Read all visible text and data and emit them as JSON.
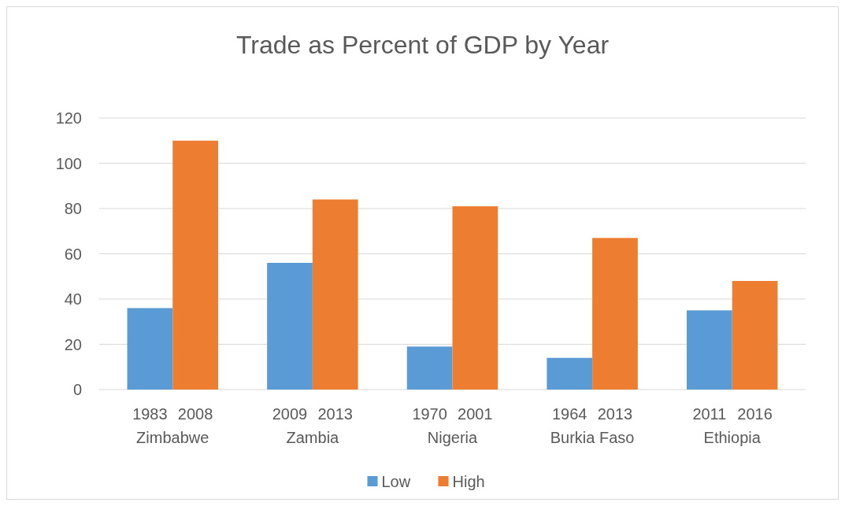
{
  "chart_data": {
    "type": "bar",
    "title": "Trade as Percent of GDP by Year",
    "categories": [
      "Zimbabwe",
      "Zambia",
      "Nigeria",
      "Burkia Faso",
      "Ethiopia"
    ],
    "series": [
      {
        "name": "Low",
        "color": "#5b9bd5",
        "values": [
          36,
          56,
          19,
          14,
          35
        ]
      },
      {
        "name": "High",
        "color": "#ed7d31",
        "values": [
          110,
          84,
          81,
          67,
          48
        ]
      }
    ],
    "ylim": [
      0,
      120
    ],
    "yticks": [
      0,
      20,
      40,
      60,
      80,
      100,
      120
    ],
    "grid": "y",
    "legend": "bottom",
    "annotations": [
      "1983",
      "2008",
      "2009",
      "2013",
      "1970",
      "2001",
      "1964",
      "2013",
      "2011",
      "2016"
    ]
  }
}
